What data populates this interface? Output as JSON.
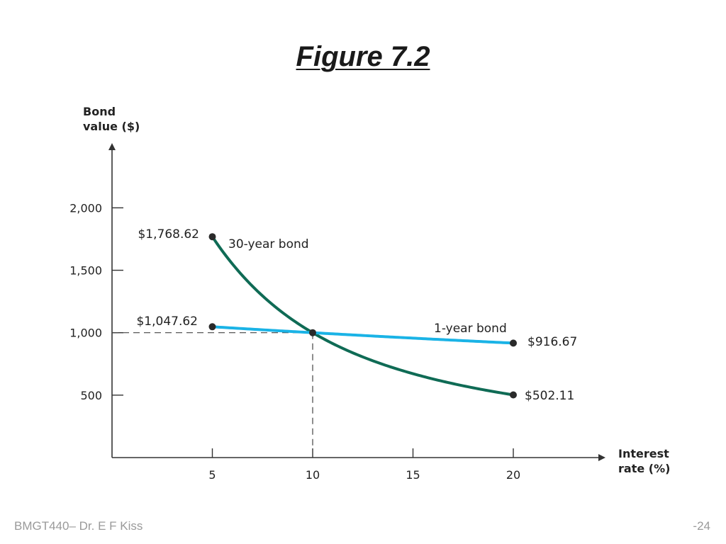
{
  "slide": {
    "title": "Figure 7.2",
    "footer_left": "BMGT440– Dr. E F Kiss",
    "footer_right": "-24"
  },
  "chart_data": {
    "type": "line",
    "title": "",
    "ylabel_lines": [
      "Bond",
      "value ($)"
    ],
    "xlabel_lines": [
      "Interest",
      "rate (%)"
    ],
    "xlim": [
      0,
      25
    ],
    "ylim": [
      0,
      2000
    ],
    "x_ticks": [
      5,
      10,
      15,
      20
    ],
    "x_tick_labels": [
      "5",
      "10",
      "15",
      "20"
    ],
    "y_ticks": [
      500,
      1000,
      1500,
      2000
    ],
    "y_tick_labels": [
      "500",
      "1,000",
      "1,500",
      "2,000"
    ],
    "grid": false,
    "reference_point": {
      "x": 10,
      "y": 1000
    },
    "series": [
      {
        "name": "30-year bond",
        "color": "#0f6b55",
        "face_value": 1000,
        "coupon_rate": 0.1,
        "years": 30,
        "x": [
          5,
          10,
          20
        ],
        "values": [
          1768.62,
          1000,
          502.11
        ],
        "endpoint_labels": [
          "$1,768.62",
          "$502.11"
        ]
      },
      {
        "name": "1-year bond",
        "color": "#1ab3e6",
        "face_value": 1000,
        "coupon_rate": 0.1,
        "years": 1,
        "x": [
          5,
          10,
          20
        ],
        "values": [
          1047.62,
          1000,
          916.67
        ],
        "endpoint_labels": [
          "$1,047.62",
          "$916.67"
        ]
      }
    ]
  }
}
